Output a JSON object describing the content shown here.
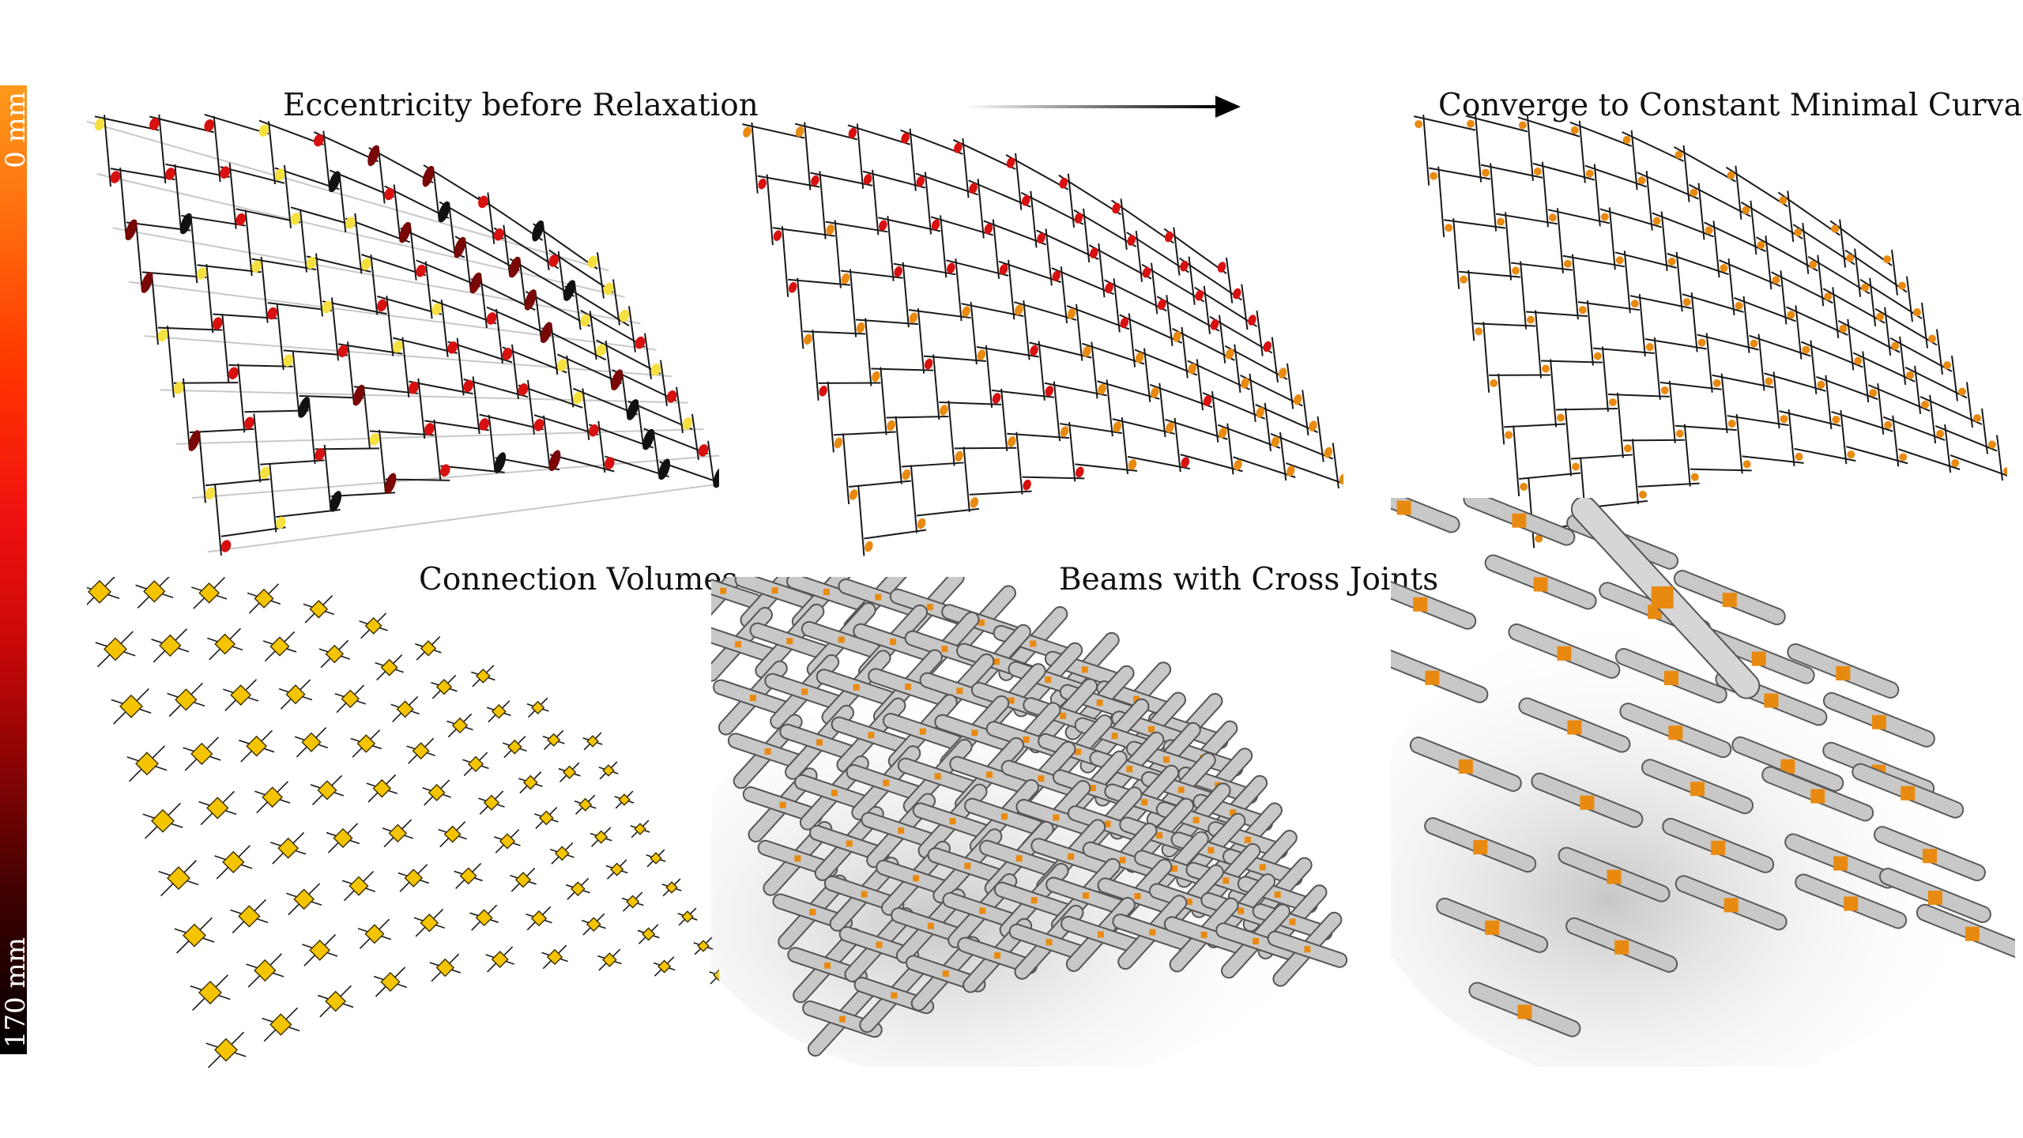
{
  "colorbar": {
    "top_label": "0 mm",
    "bottom_label": "170 mm",
    "top_color": "#ff9a1a",
    "bottom_color": "#000000"
  },
  "titles": {
    "eccentricity": "Eccentricity before Relaxation",
    "converge": "Converge to Constant Minimal  Curvature",
    "connection_volumes": "Connection Volumes",
    "beams": "Beams with Cross Joints"
  },
  "arrow": {
    "icon": "right-arrow-icon",
    "direction": "right"
  },
  "colors": {
    "joint_red": "#d81010",
    "joint_orange": "#e98a10",
    "volume_yellow": "#f5c400",
    "beam_grey": "#c8c8c8",
    "line": "#1a1a1a"
  }
}
